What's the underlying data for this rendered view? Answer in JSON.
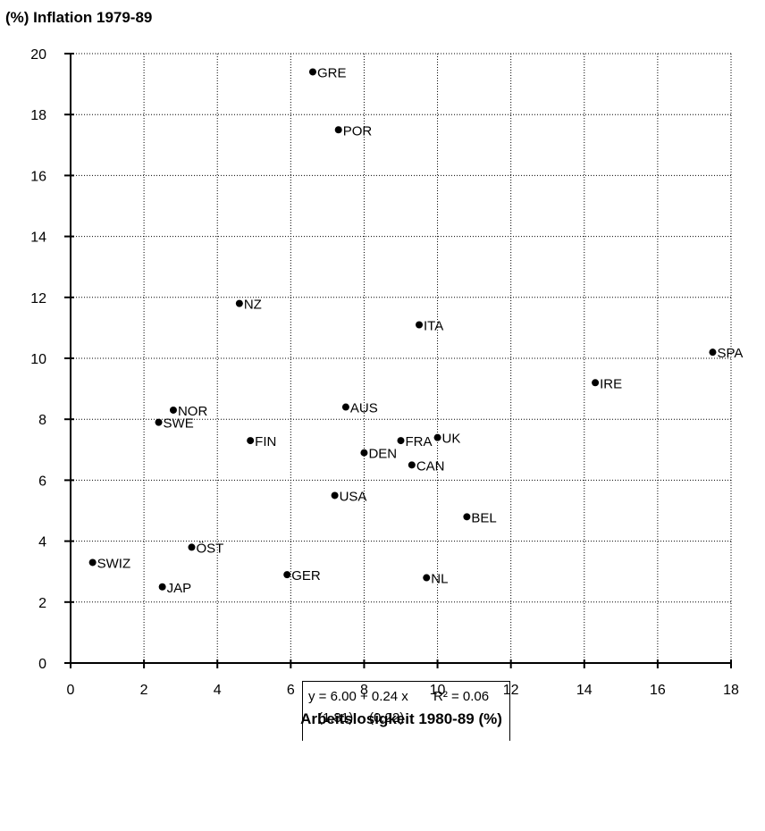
{
  "chart_data": {
    "type": "scatter",
    "title": "(%) Inflation 1979-89",
    "xlabel": "Arbeitslosigkeit 1980-89 (%)",
    "ylabel": "",
    "xlim": [
      0,
      18
    ],
    "ylim": [
      0,
      20
    ],
    "xticks": [
      0,
      2,
      4,
      6,
      8,
      10,
      12,
      14,
      16,
      18
    ],
    "yticks": [
      0,
      2,
      4,
      6,
      8,
      10,
      12,
      14,
      16,
      18,
      20
    ],
    "grid": true,
    "points": [
      {
        "label": "GRE",
        "x": 6.6,
        "y": 19.4
      },
      {
        "label": "POR",
        "x": 7.3,
        "y": 17.5
      },
      {
        "label": "NZ",
        "x": 4.6,
        "y": 11.8
      },
      {
        "label": "ITA",
        "x": 9.5,
        "y": 11.1
      },
      {
        "label": "SPA",
        "x": 17.5,
        "y": 10.2
      },
      {
        "label": "IRE",
        "x": 14.3,
        "y": 9.2
      },
      {
        "label": "NOR",
        "x": 2.8,
        "y": 8.3
      },
      {
        "label": "SWE",
        "x": 2.4,
        "y": 7.9
      },
      {
        "label": "AUS",
        "x": 7.5,
        "y": 8.4
      },
      {
        "label": "FIN",
        "x": 4.9,
        "y": 7.3
      },
      {
        "label": "FRA",
        "x": 9.0,
        "y": 7.3
      },
      {
        "label": "UK",
        "x": 10.0,
        "y": 7.4
      },
      {
        "label": "DEN",
        "x": 8.0,
        "y": 6.9
      },
      {
        "label": "CAN",
        "x": 9.3,
        "y": 6.5
      },
      {
        "label": "USA",
        "x": 7.2,
        "y": 5.5
      },
      {
        "label": "BEL",
        "x": 10.8,
        "y": 4.8
      },
      {
        "label": "ÖST",
        "x": 3.3,
        "y": 3.8
      },
      {
        "label": "SWIZ",
        "x": 0.6,
        "y": 3.3
      },
      {
        "label": "GER",
        "x": 5.9,
        "y": 2.9
      },
      {
        "label": "NL",
        "x": 9.7,
        "y": 2.8
      },
      {
        "label": "JAP",
        "x": 2.5,
        "y": 2.5
      }
    ],
    "regression": {
      "equation": "y = 6.00 + 0.24 x",
      "r2": "R² = 0.06",
      "se_intercept": "(1.81)",
      "se_slope": "(0.22)"
    }
  }
}
